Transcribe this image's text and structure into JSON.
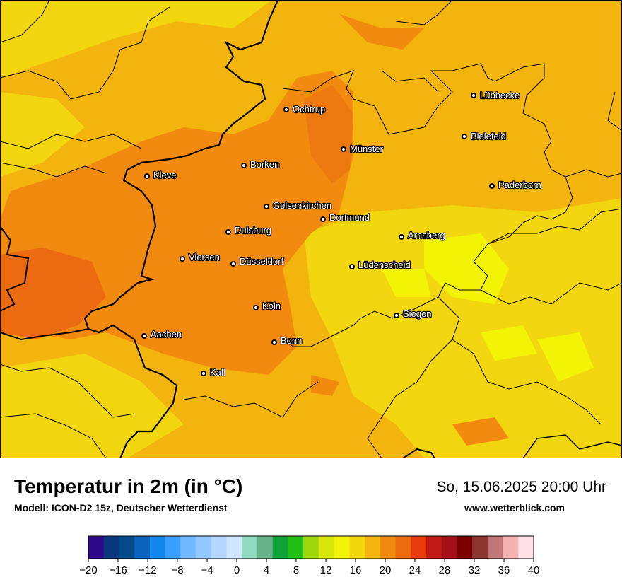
{
  "header": {
    "title": "Temperatur in 2m (in °C)",
    "model": "Modell: ICON-D2 15z, Deutscher Wetterdienst",
    "datetime": "So, 15.06.2025 20:00 Uhr",
    "website": "www.wetterblick.com"
  },
  "map": {
    "base_color": "#f3b40e",
    "cities": [
      {
        "name": "Lübbecke"
      },
      {
        "name": "Ochtrup"
      },
      {
        "name": "Bielefeld"
      },
      {
        "name": "Münster"
      },
      {
        "name": "Borken"
      },
      {
        "name": "Kleve"
      },
      {
        "name": "Paderborn"
      },
      {
        "name": "Gelsenkirchen"
      },
      {
        "name": "Dortmund"
      },
      {
        "name": "Duisburg"
      },
      {
        "name": "Arnsberg"
      },
      {
        "name": "Viersen"
      },
      {
        "name": "Düsseldorf"
      },
      {
        "name": "Lüdenscheid"
      },
      {
        "name": "Köln"
      },
      {
        "name": "Siegen"
      },
      {
        "name": "Aachen"
      },
      {
        "name": "Bonn"
      },
      {
        "name": "Kall"
      }
    ]
  },
  "legend": {
    "unit": "°C",
    "ticks": [
      "−20",
      "−16",
      "−12",
      "−8",
      "−4",
      "0",
      "4",
      "8",
      "12",
      "16",
      "20",
      "24",
      "28",
      "32",
      "36",
      "40"
    ],
    "colors": [
      "#2e0a8a",
      "#0a3880",
      "#054b8c",
      "#0a63bf",
      "#1487ee",
      "#3aa0ff",
      "#72b9ff",
      "#93c7ff",
      "#b2d7ff",
      "#d0e6ff",
      "#90dac0",
      "#67b28a",
      "#10a33a",
      "#22bf17",
      "#9ed70e",
      "#d7e709",
      "#f3f305",
      "#f2d60f",
      "#f3b40e",
      "#f28a0f",
      "#ec6a10",
      "#e83a0d",
      "#c11a12",
      "#a3101a",
      "#7a0000",
      "#8b3530",
      "#c27878",
      "#f5b2b2",
      "#ffe0e6"
    ]
  }
}
